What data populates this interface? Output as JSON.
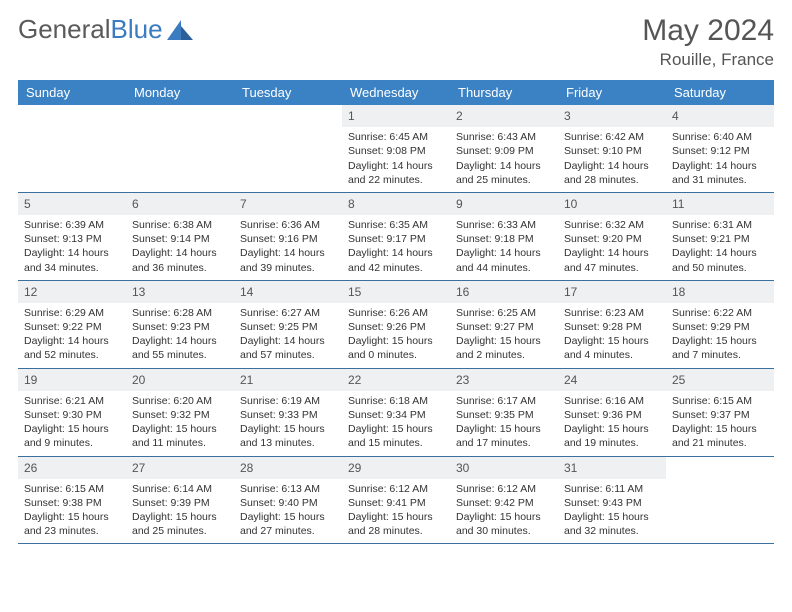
{
  "logo": {
    "text1": "General",
    "text2": "Blue"
  },
  "title": "May 2024",
  "location": "Rouille, France",
  "colors": {
    "header_bg": "#3b82c4",
    "header_text": "#ffffff",
    "daynum_bg": "#eef0f2",
    "body_text": "#333333",
    "border": "#3b6fa0",
    "logo_gray": "#5a5a5a",
    "logo_blue": "#3b7bbf"
  },
  "dayNames": [
    "Sunday",
    "Monday",
    "Tuesday",
    "Wednesday",
    "Thursday",
    "Friday",
    "Saturday"
  ],
  "weeks": [
    [
      null,
      null,
      null,
      {
        "n": "1",
        "sr": "6:45 AM",
        "ss": "9:08 PM",
        "dl": "14 hours and 22 minutes."
      },
      {
        "n": "2",
        "sr": "6:43 AM",
        "ss": "9:09 PM",
        "dl": "14 hours and 25 minutes."
      },
      {
        "n": "3",
        "sr": "6:42 AM",
        "ss": "9:10 PM",
        "dl": "14 hours and 28 minutes."
      },
      {
        "n": "4",
        "sr": "6:40 AM",
        "ss": "9:12 PM",
        "dl": "14 hours and 31 minutes."
      }
    ],
    [
      {
        "n": "5",
        "sr": "6:39 AM",
        "ss": "9:13 PM",
        "dl": "14 hours and 34 minutes."
      },
      {
        "n": "6",
        "sr": "6:38 AM",
        "ss": "9:14 PM",
        "dl": "14 hours and 36 minutes."
      },
      {
        "n": "7",
        "sr": "6:36 AM",
        "ss": "9:16 PM",
        "dl": "14 hours and 39 minutes."
      },
      {
        "n": "8",
        "sr": "6:35 AM",
        "ss": "9:17 PM",
        "dl": "14 hours and 42 minutes."
      },
      {
        "n": "9",
        "sr": "6:33 AM",
        "ss": "9:18 PM",
        "dl": "14 hours and 44 minutes."
      },
      {
        "n": "10",
        "sr": "6:32 AM",
        "ss": "9:20 PM",
        "dl": "14 hours and 47 minutes."
      },
      {
        "n": "11",
        "sr": "6:31 AM",
        "ss": "9:21 PM",
        "dl": "14 hours and 50 minutes."
      }
    ],
    [
      {
        "n": "12",
        "sr": "6:29 AM",
        "ss": "9:22 PM",
        "dl": "14 hours and 52 minutes."
      },
      {
        "n": "13",
        "sr": "6:28 AM",
        "ss": "9:23 PM",
        "dl": "14 hours and 55 minutes."
      },
      {
        "n": "14",
        "sr": "6:27 AM",
        "ss": "9:25 PM",
        "dl": "14 hours and 57 minutes."
      },
      {
        "n": "15",
        "sr": "6:26 AM",
        "ss": "9:26 PM",
        "dl": "15 hours and 0 minutes."
      },
      {
        "n": "16",
        "sr": "6:25 AM",
        "ss": "9:27 PM",
        "dl": "15 hours and 2 minutes."
      },
      {
        "n": "17",
        "sr": "6:23 AM",
        "ss": "9:28 PM",
        "dl": "15 hours and 4 minutes."
      },
      {
        "n": "18",
        "sr": "6:22 AM",
        "ss": "9:29 PM",
        "dl": "15 hours and 7 minutes."
      }
    ],
    [
      {
        "n": "19",
        "sr": "6:21 AM",
        "ss": "9:30 PM",
        "dl": "15 hours and 9 minutes."
      },
      {
        "n": "20",
        "sr": "6:20 AM",
        "ss": "9:32 PM",
        "dl": "15 hours and 11 minutes."
      },
      {
        "n": "21",
        "sr": "6:19 AM",
        "ss": "9:33 PM",
        "dl": "15 hours and 13 minutes."
      },
      {
        "n": "22",
        "sr": "6:18 AM",
        "ss": "9:34 PM",
        "dl": "15 hours and 15 minutes."
      },
      {
        "n": "23",
        "sr": "6:17 AM",
        "ss": "9:35 PM",
        "dl": "15 hours and 17 minutes."
      },
      {
        "n": "24",
        "sr": "6:16 AM",
        "ss": "9:36 PM",
        "dl": "15 hours and 19 minutes."
      },
      {
        "n": "25",
        "sr": "6:15 AM",
        "ss": "9:37 PM",
        "dl": "15 hours and 21 minutes."
      }
    ],
    [
      {
        "n": "26",
        "sr": "6:15 AM",
        "ss": "9:38 PM",
        "dl": "15 hours and 23 minutes."
      },
      {
        "n": "27",
        "sr": "6:14 AM",
        "ss": "9:39 PM",
        "dl": "15 hours and 25 minutes."
      },
      {
        "n": "28",
        "sr": "6:13 AM",
        "ss": "9:40 PM",
        "dl": "15 hours and 27 minutes."
      },
      {
        "n": "29",
        "sr": "6:12 AM",
        "ss": "9:41 PM",
        "dl": "15 hours and 28 minutes."
      },
      {
        "n": "30",
        "sr": "6:12 AM",
        "ss": "9:42 PM",
        "dl": "15 hours and 30 minutes."
      },
      {
        "n": "31",
        "sr": "6:11 AM",
        "ss": "9:43 PM",
        "dl": "15 hours and 32 minutes."
      },
      null
    ]
  ],
  "labels": {
    "sunrise": "Sunrise: ",
    "sunset": "Sunset: ",
    "daylight": "Daylight: "
  }
}
